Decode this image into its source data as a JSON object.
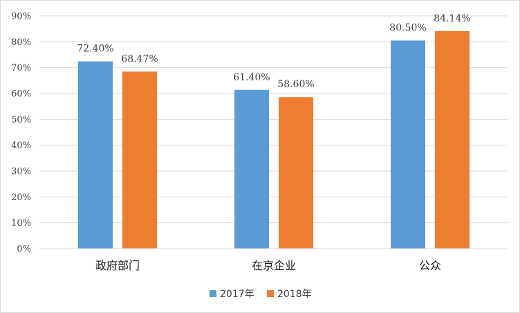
{
  "chart_data": {
    "type": "bar",
    "categories": [
      "政府部门",
      "在京企业",
      "公众"
    ],
    "series": [
      {
        "name": "2017年",
        "color": "#5B9BD5",
        "values": [
          72.4,
          61.4,
          80.5
        ],
        "labels": [
          "72.40%",
          "61.40%",
          "80.50%"
        ]
      },
      {
        "name": "2018年",
        "color": "#ED7D31",
        "values": [
          68.47,
          58.6,
          84.14
        ],
        "labels": [
          "68.47%",
          "58.60%",
          "84.14%"
        ]
      }
    ],
    "ylim": [
      0,
      90
    ],
    "yticks": [
      "0%",
      "10%",
      "20%",
      "30%",
      "40%",
      "50%",
      "60%",
      "70%",
      "80%",
      "90%"
    ],
    "grid": true,
    "legend_position": "bottom"
  }
}
